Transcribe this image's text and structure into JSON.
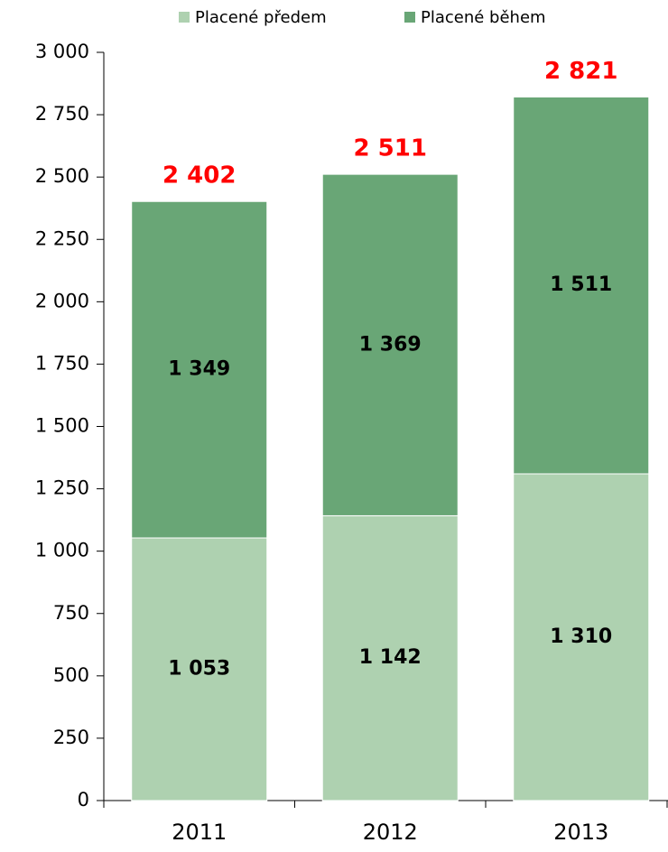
{
  "chart_data": {
    "type": "stacked_bar",
    "categories": [
      "2011",
      "2012",
      "2013"
    ],
    "series": [
      {
        "name": "Placené předem",
        "color": "#aed1b0",
        "values": [
          1053,
          1142,
          1310
        ],
        "value_labels": [
          "1 053",
          "1 142",
          "1 310"
        ]
      },
      {
        "name": "Placené během",
        "color": "#69a676",
        "values": [
          1349,
          1369,
          1511
        ],
        "value_labels": [
          "1 349",
          "1 369",
          "1 511"
        ]
      }
    ],
    "totals": [
      2402,
      2511,
      2821
    ],
    "total_labels": [
      "2 402",
      "2 511",
      "2 821"
    ],
    "ylim": [
      0,
      3000
    ],
    "yticks": [
      0,
      250,
      500,
      750,
      {
        "value": 1000,
        "label": "1 000"
      },
      {
        "value": 1250,
        "label": "1 250"
      },
      {
        "value": 1500,
        "label": "1 500"
      },
      {
        "value": 1750,
        "label": "1 750"
      },
      {
        "value": 2000,
        "label": "2 000"
      },
      {
        "value": 2250,
        "label": "2 250"
      },
      {
        "value": 2500,
        "label": "2 500"
      },
      {
        "value": 2750,
        "label": "2 750"
      },
      {
        "value": 3000,
        "label": "3 000"
      }
    ],
    "legend": "top",
    "grid": false
  }
}
